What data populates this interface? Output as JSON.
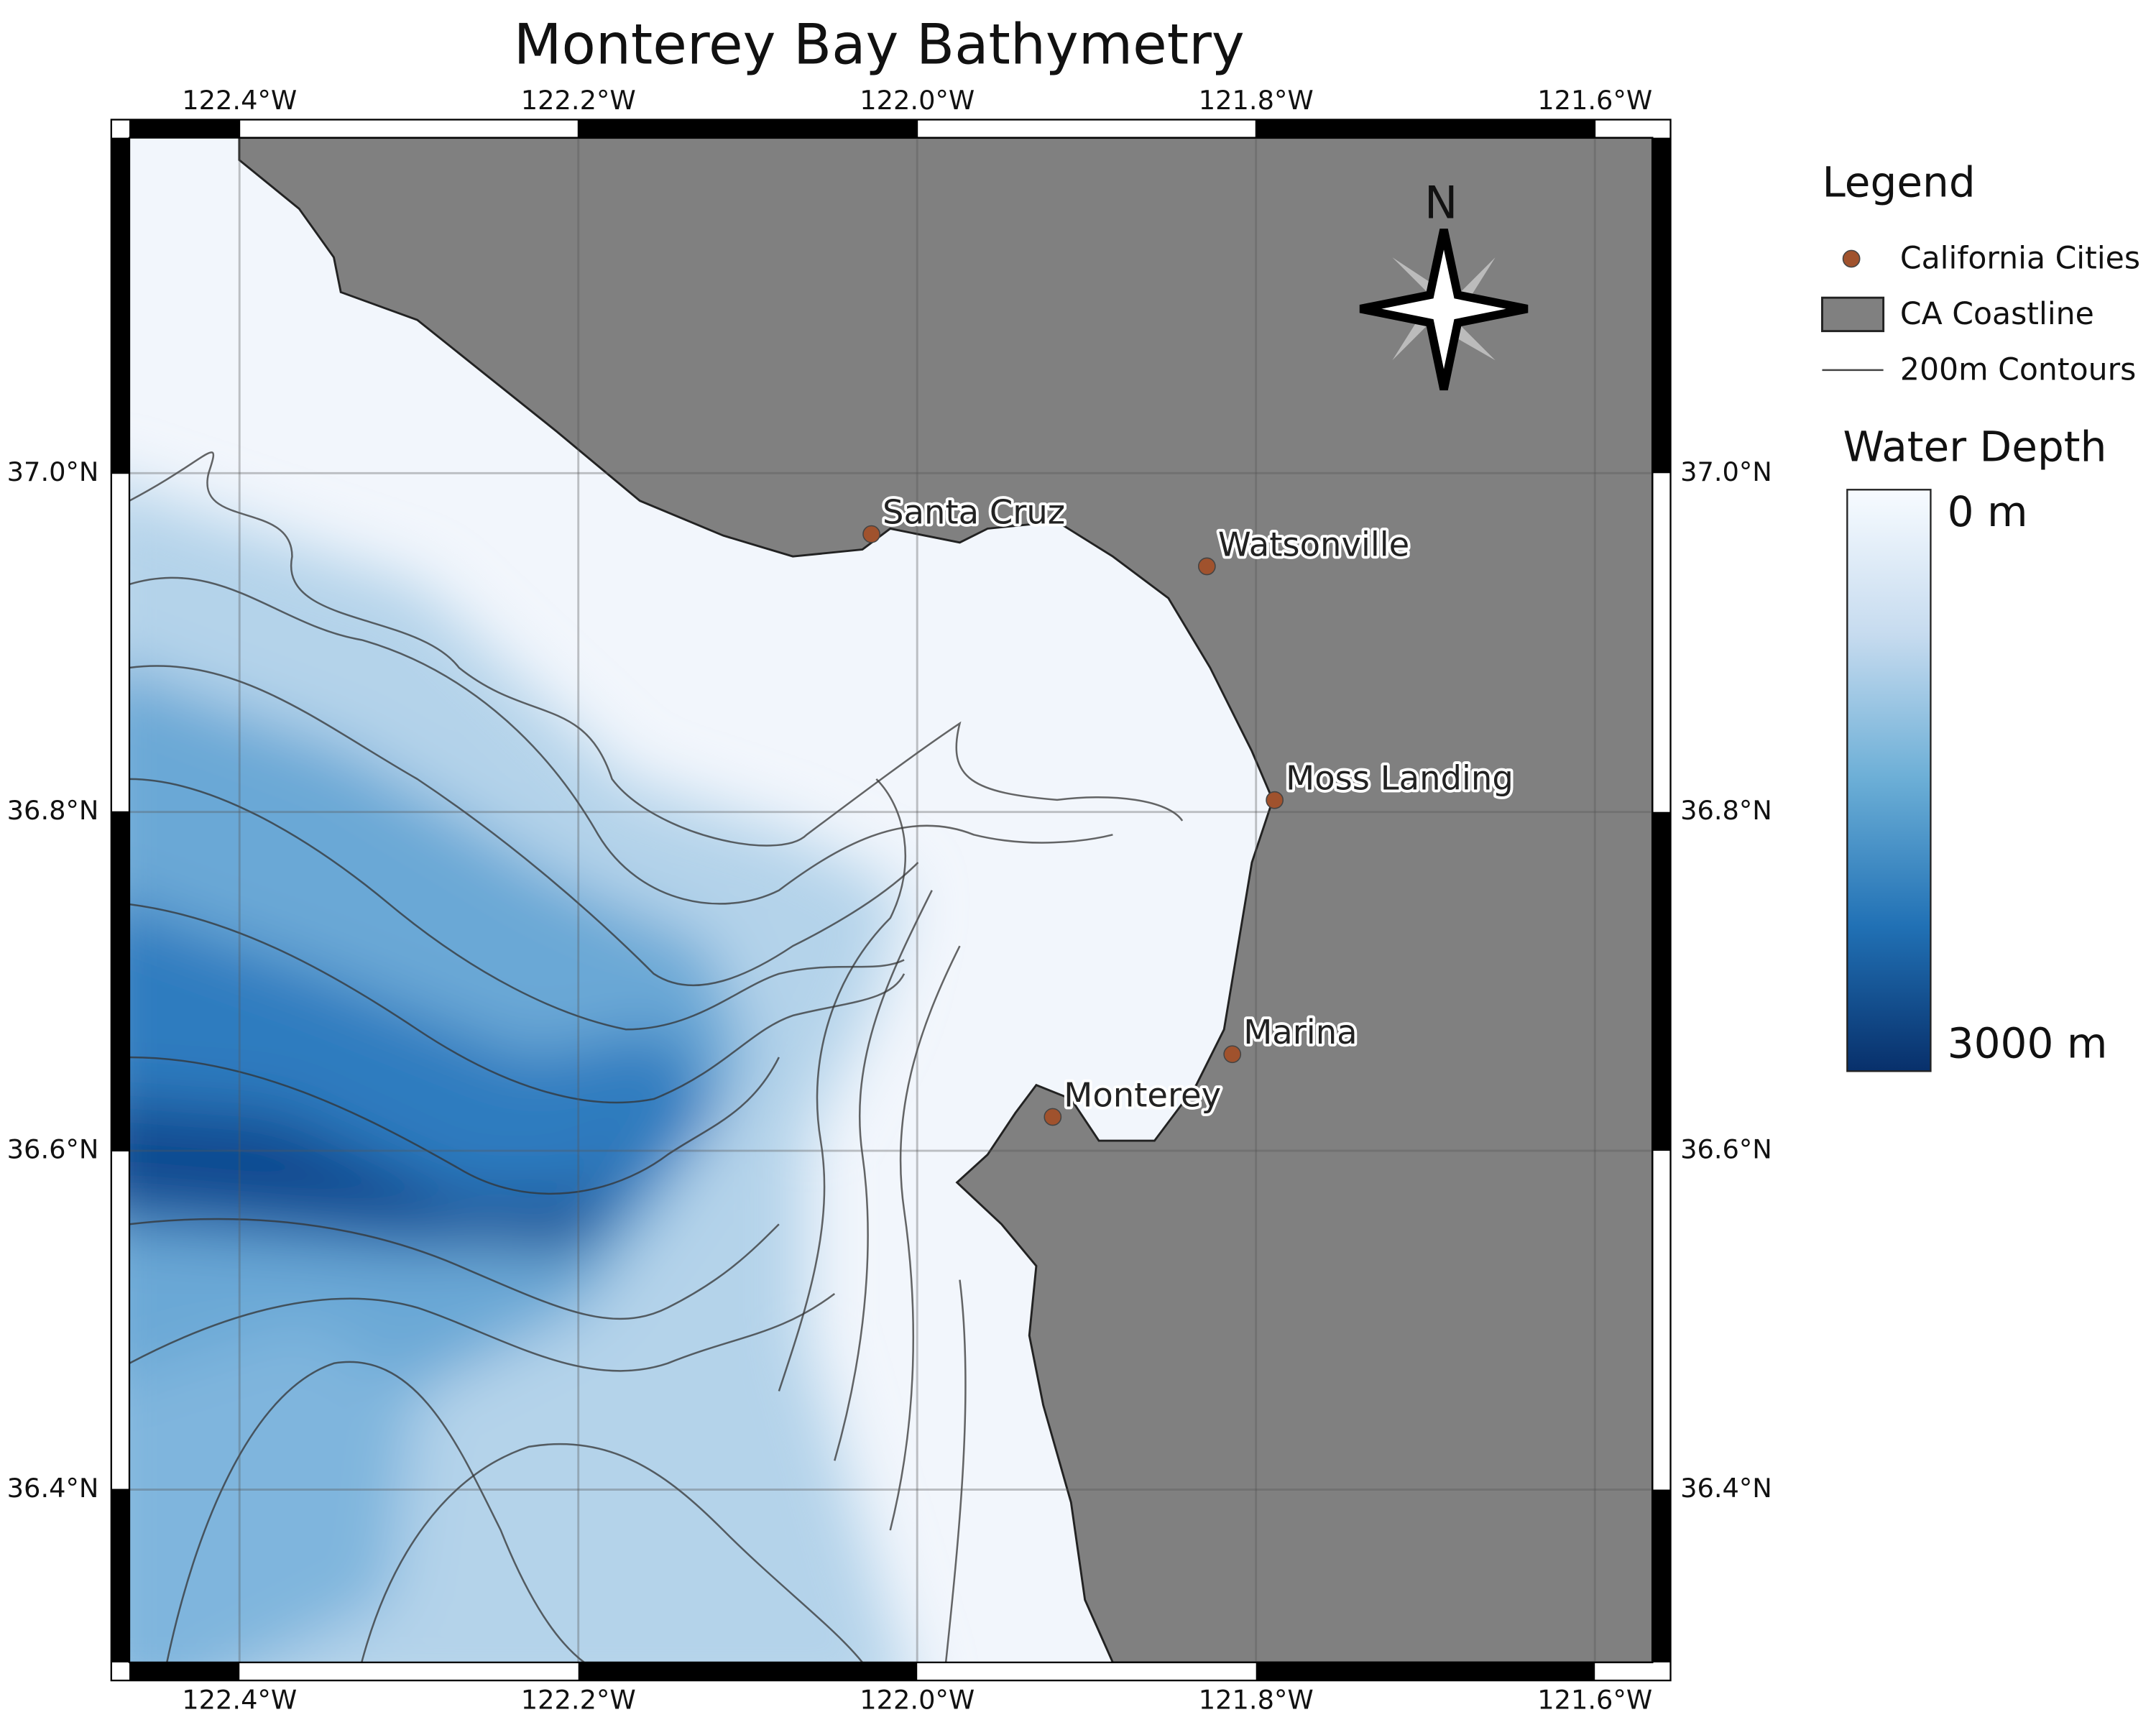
{
  "title": "Monterey Bay Bathymetry",
  "map": {
    "xlim": [
      -122.465,
      -121.566
    ],
    "ylim": [
      36.298,
      37.198
    ],
    "xticks": [
      {
        "value": -122.4,
        "label": "122.4°W"
      },
      {
        "value": -122.2,
        "label": "122.2°W"
      },
      {
        "value": -122.0,
        "label": "122.0°W"
      },
      {
        "value": -121.8,
        "label": "121.8°W"
      },
      {
        "value": -121.6,
        "label": "121.6°W"
      }
    ],
    "yticks": [
      {
        "value": 37.0,
        "label": "37.0°N"
      },
      {
        "value": 36.8,
        "label": "36.8°N"
      },
      {
        "value": 36.6,
        "label": "36.6°N"
      },
      {
        "value": 36.4,
        "label": "36.4°N"
      }
    ],
    "grid": true,
    "land_color": "#808080",
    "city_color": "#a0522d",
    "cities": [
      {
        "name": "Santa Cruz",
        "lon": -122.027,
        "lat": 36.964
      },
      {
        "name": "Watsonville",
        "lon": -121.829,
        "lat": 36.945
      },
      {
        "name": "Moss Landing",
        "lon": -121.789,
        "lat": 36.807
      },
      {
        "name": "Marina",
        "lon": -121.814,
        "lat": 36.657
      },
      {
        "name": "Monterey",
        "lon": -121.92,
        "lat": 36.62
      }
    ]
  },
  "compass": "N",
  "legend": {
    "title": "Legend",
    "items": [
      "California Cities",
      "CA Coastline",
      "200m Contours"
    ]
  },
  "colorbar": {
    "title": "Water Depth",
    "ticks": [
      {
        "value": 0,
        "label": "0 m"
      },
      {
        "value": 3000,
        "label": "3000 m"
      }
    ],
    "colors": [
      "#f7fbff",
      "#c6dbef",
      "#6baed6",
      "#2171b5",
      "#08306b"
    ]
  }
}
